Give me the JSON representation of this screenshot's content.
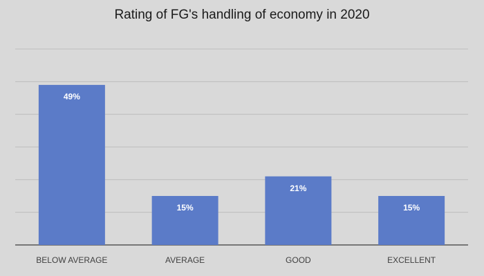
{
  "chart_data": {
    "type": "bar",
    "title": "Rating of FG's handling of economy in 2020",
    "categories": [
      "BELOW AVERAGE",
      "AVERAGE",
      "GOOD",
      "EXCELLENT"
    ],
    "values": [
      49,
      15,
      21,
      15
    ],
    "value_labels": [
      "49%",
      "15%",
      "21%",
      "15%"
    ],
    "color": "#5b7bc8",
    "ylim": [
      0,
      60
    ],
    "yticks": [
      0,
      10,
      20,
      30,
      40,
      50,
      60
    ],
    "grid": true
  }
}
